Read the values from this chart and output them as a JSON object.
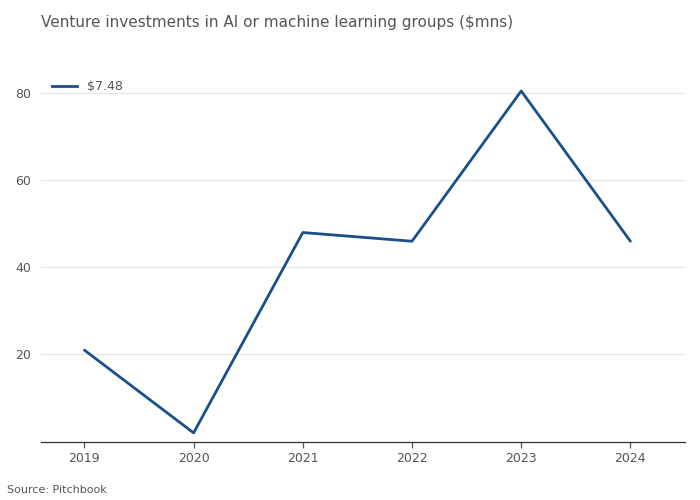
{
  "title": "Venture investments in AI or machine learning groups ($mns)",
  "source": "Source: Pitchbook",
  "legend_label": "$7.48",
  "x": [
    2019,
    2020,
    2021,
    2022,
    2023,
    2024
  ],
  "y": [
    21,
    2,
    48,
    46,
    80.5,
    46
  ],
  "line_color": "#1b4f8a",
  "yticks": [
    20,
    40,
    60,
    80
  ],
  "ylim": [
    0,
    92
  ],
  "xlim": [
    2018.6,
    2024.5
  ],
  "background_color": "#ffffff",
  "text_color": "#555555",
  "grid_color": "#e8e4df",
  "axis_color": "#333333",
  "title_fontsize": 11,
  "legend_fontsize": 9,
  "tick_fontsize": 9,
  "source_fontsize": 8,
  "line_width": 2.0
}
